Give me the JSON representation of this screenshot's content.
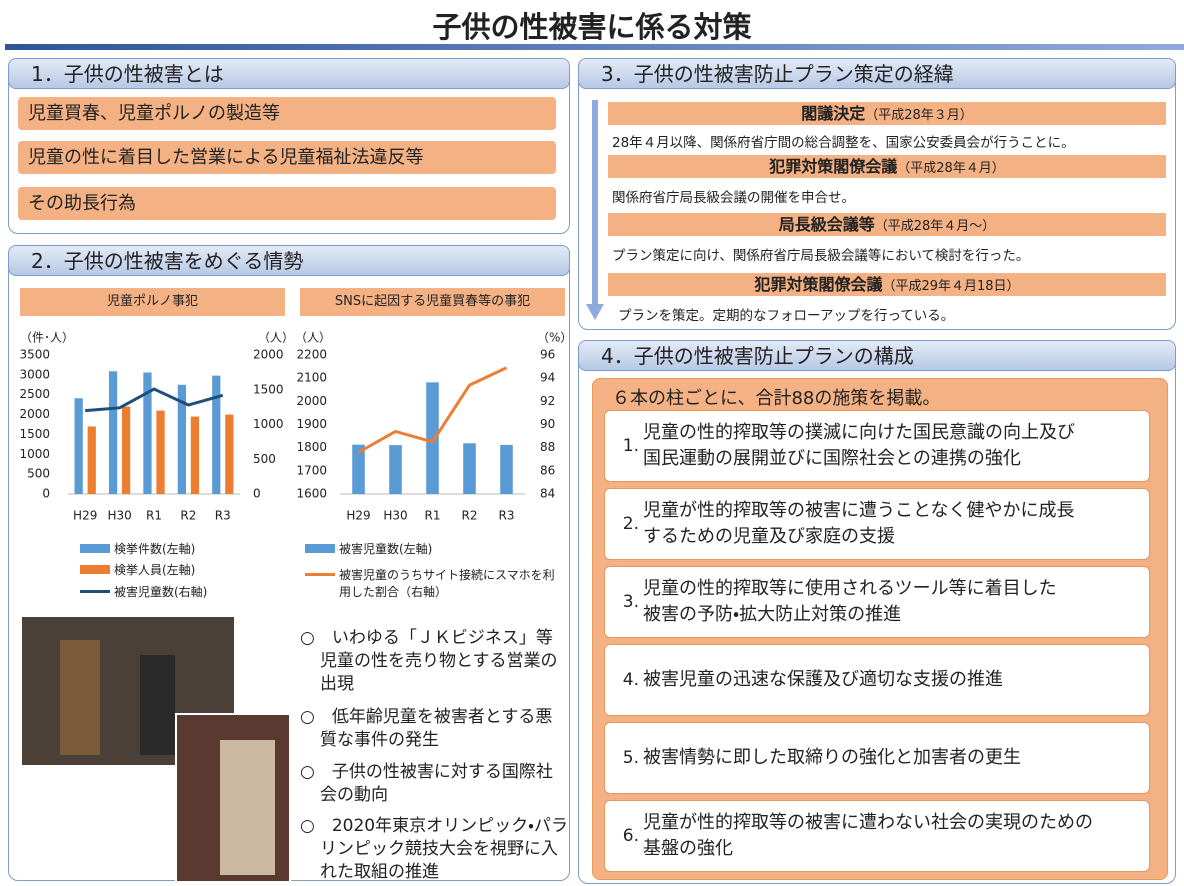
{
  "title": "子供の性被害に係る対策",
  "section1": {
    "heading": "1．子供の性被害とは",
    "items": [
      "児童買春、児童ポルノの製造等",
      "児童の性に着目した営業による児童福祉法違反等",
      "その助長行為"
    ]
  },
  "section2": {
    "heading": "2．子供の性被害をめぐる情勢",
    "bullets": [
      "○　いわゆる「ＪＫビジネス」等児童の性を売り物とする営業の出現",
      "○　低年齢児童を被害者とする悪質な事件の発生",
      "○　子供の性被害に対する国際社会の動向",
      "○　2020年東京オリンピック・パラリンピック競技大会を視野に入れた取組の推進"
    ]
  },
  "chart_data": [
    {
      "type": "bar",
      "title": "児童ポルノ事犯",
      "y_label": "（件･人）",
      "y2_label": "（人）",
      "categories": [
        "H29",
        "H30",
        "R1",
        "R2",
        "R3"
      ],
      "series": [
        {
          "name": "検挙件数(左軸)",
          "color": "#5b9bd5",
          "values": [
            2410,
            3090,
            3060,
            2750,
            2980
          ]
        },
        {
          "name": "検挙人員(左軸)",
          "color": "#ed7d31",
          "values": [
            1700,
            2200,
            2100,
            1950,
            2000
          ]
        },
        {
          "name": "被害児童数(右軸)",
          "color": "#1f4e79",
          "type": "line",
          "axis": "y2",
          "values": [
            1200,
            1240,
            1510,
            1280,
            1420
          ]
        }
      ],
      "ylim": [
        0,
        3500
      ],
      "yticks": [
        0,
        500,
        1000,
        1500,
        2000,
        2500,
        3000,
        3500
      ],
      "y2lim": [
        0,
        2000
      ],
      "y2ticks": [
        0,
        500,
        1000,
        1500,
        2000
      ]
    },
    {
      "type": "bar",
      "title": "SNSに起因する児童買春等の事犯",
      "y_label": "（人）",
      "y2_label": "（%）",
      "categories": [
        "H29",
        "H30",
        "R1",
        "R2",
        "R3"
      ],
      "series": [
        {
          "name": "被害児童数(左軸)",
          "color": "#5b9bd5",
          "values": [
            1813,
            1811,
            2082,
            1819,
            1812
          ]
        },
        {
          "name": "被害児童のうちサイト接続にスマホを利用した割合（右軸）",
          "color": "#ed7d31",
          "type": "line",
          "axis": "y2",
          "values": [
            87.6,
            89.4,
            88.5,
            93.4,
            94.9
          ]
        }
      ],
      "ylim": [
        1600,
        2200
      ],
      "yticks": [
        1600,
        1700,
        1800,
        1900,
        2000,
        2100,
        2200
      ],
      "y2lim": [
        84,
        96
      ],
      "y2ticks": [
        84,
        86,
        88,
        90,
        92,
        94,
        96
      ]
    }
  ],
  "section3": {
    "heading": "3．子供の性被害防止プラン策定の経緯",
    "steps": [
      {
        "title": "閣議決定",
        "date": "（平成28年３月）",
        "text": "28年４月以降、関係府省庁間の総合調整を、国家公安委員会が行うことに。"
      },
      {
        "title": "犯罪対策閣僚会議",
        "date": "（平成28年４月）",
        "text": "関係府省庁局長級会議の開催を申合せ。"
      },
      {
        "title": "局長級会議等",
        "date": "（平成28年４月～）",
        "text": "プラン策定に向け、関係府省庁局長級会議等において検討を行った。"
      },
      {
        "title": "犯罪対策閣僚会議",
        "date": "（平成29年４月18日）",
        "text": "プランを策定。定期的なフォローアップを行っている。"
      }
    ]
  },
  "section4": {
    "heading": "4．子供の性被害防止プランの構成",
    "summary": "６本の柱ごとに、合計88の施策を掲載。",
    "pillars": [
      {
        "number": "1.",
        "lines": [
          "児童の性的搾取等の撲滅に向けた国民意識の向上及び",
          "国民運動の展開並びに国際社会との連携の強化"
        ]
      },
      {
        "number": "2.",
        "lines": [
          "児童が性的搾取等の被害に遭うことなく健やかに成長",
          "するための児童及び家庭の支援"
        ]
      },
      {
        "number": "3.",
        "lines": [
          "児童の性的搾取等に使用されるツール等に着目した",
          "被害の予防・拡大防止対策の推進"
        ]
      },
      {
        "number": "4.",
        "lines": [
          "被害児童の迅速な保護及び適切な支援の推進"
        ]
      },
      {
        "number": "5.",
        "lines": [
          "被害情勢に即した取締りの強化と加害者の更生"
        ]
      },
      {
        "number": "6.",
        "lines": [
          "児童が性的搾取等の被害に遭わない社会の実現のための",
          "基盤の強化"
        ]
      }
    ]
  }
}
